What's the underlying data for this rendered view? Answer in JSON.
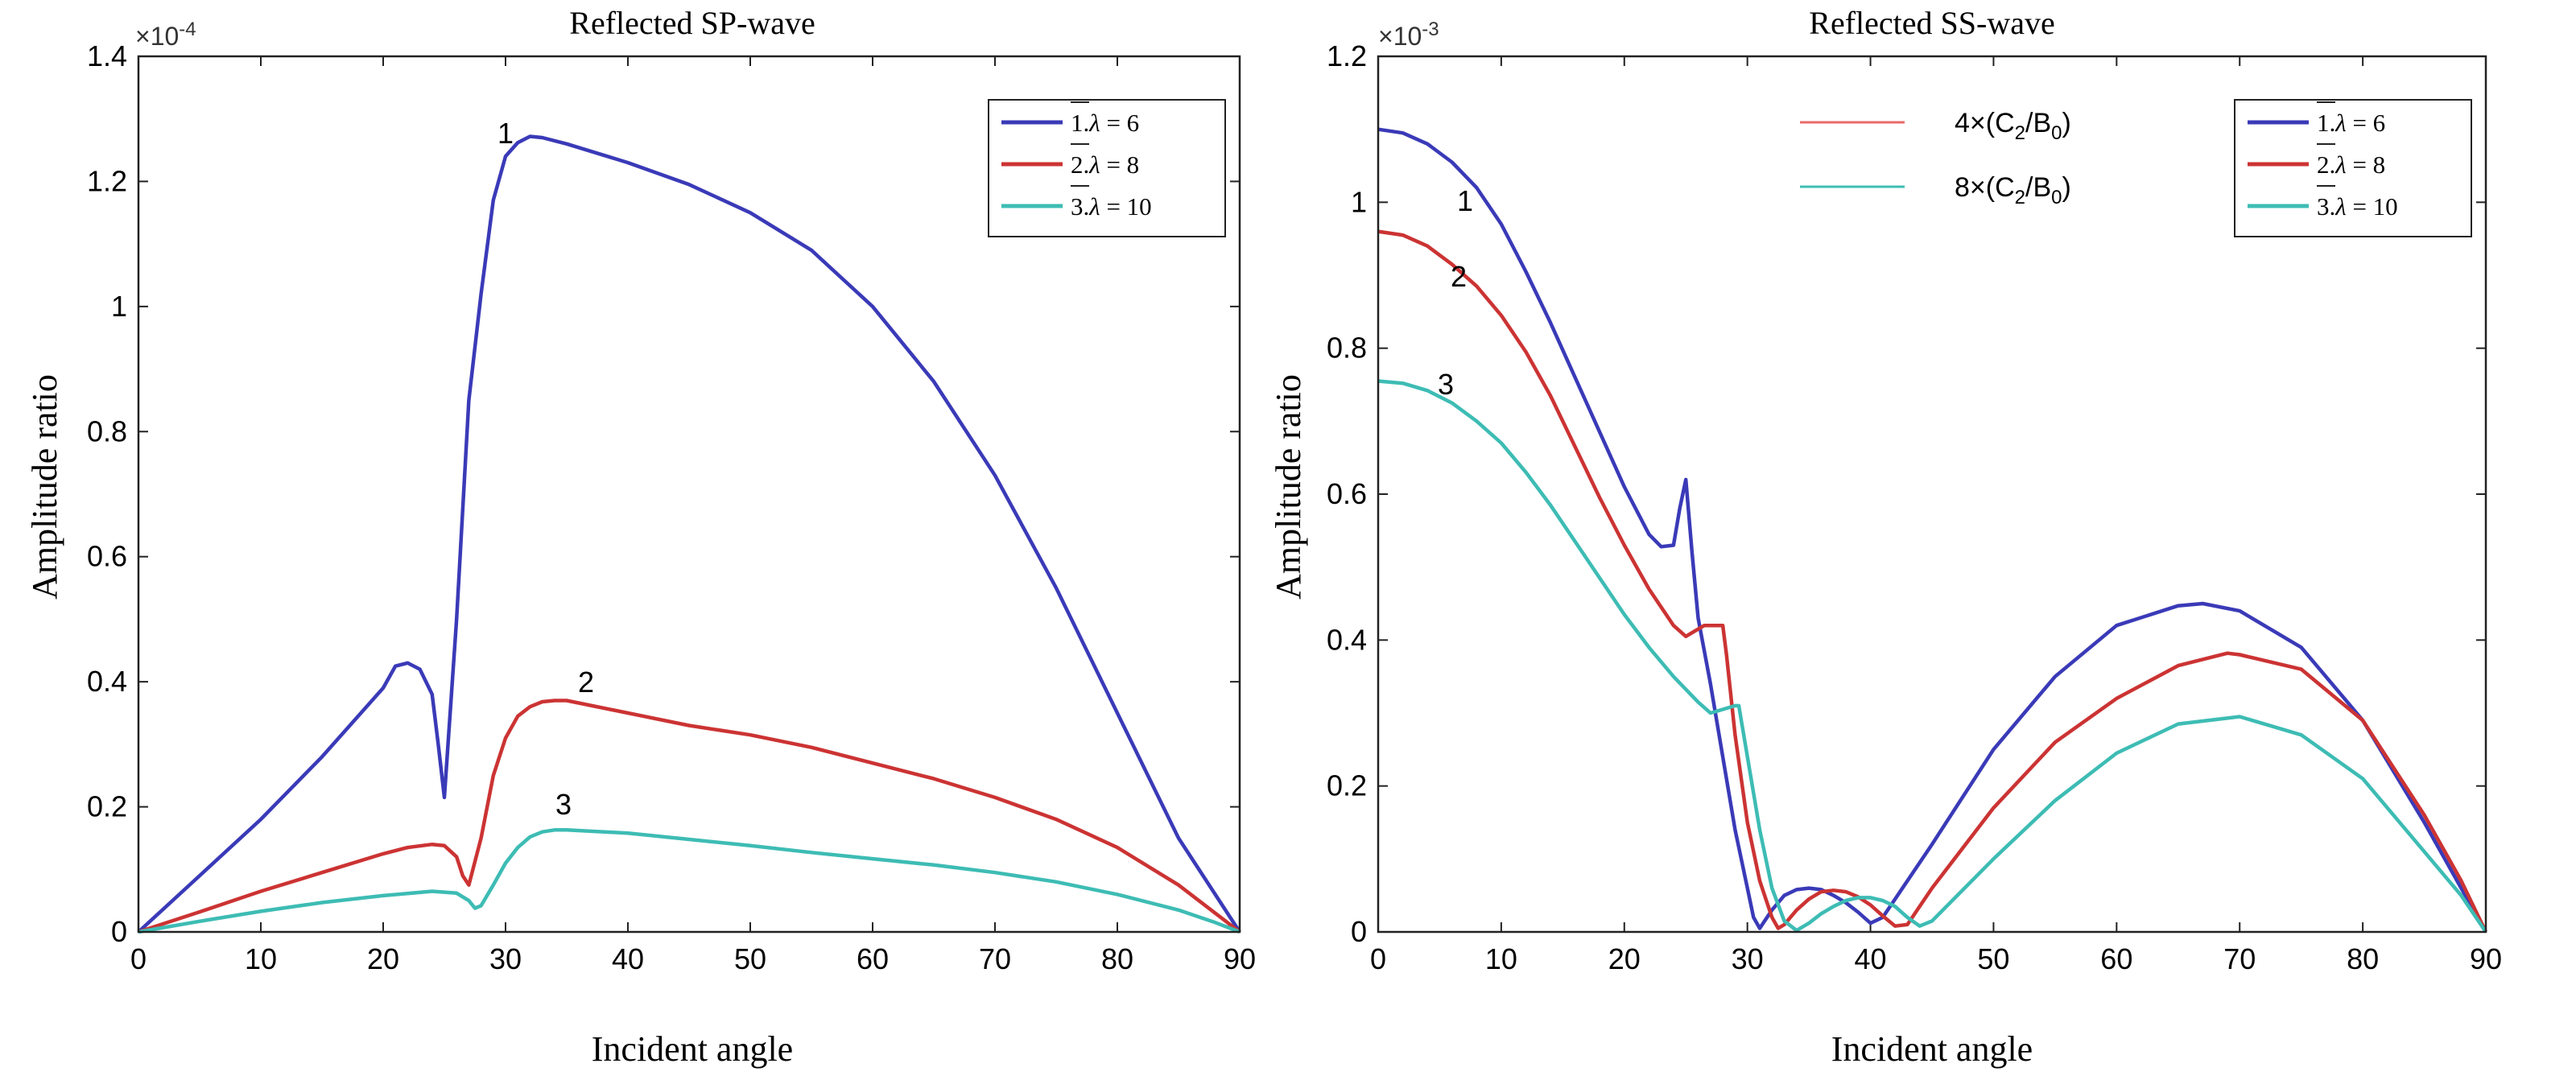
{
  "chart_data": [
    {
      "type": "line",
      "title": "Reflected SP-wave",
      "xlabel": "Incident angle",
      "ylabel": "Amplitude ratio",
      "exponent_label": "×10",
      "exponent_power": "-4",
      "xlim": [
        0,
        90
      ],
      "ylim": [
        0,
        1.4
      ],
      "xticks": [
        "0",
        "10",
        "20",
        "30",
        "40",
        "50",
        "60",
        "70",
        "80",
        "90"
      ],
      "yticks": [
        "0",
        "0.2",
        "0.4",
        "0.6",
        "0.8",
        "1",
        "1.2",
        "1.4"
      ],
      "legend_position": "top-right",
      "series": [
        {
          "name": "1.λ = 6",
          "legend_prefix": "1.",
          "legend_value": "6",
          "color": "#3a3ab8",
          "curve_label": "1",
          "x": [
            0,
            5,
            10,
            15,
            20,
            21,
            22,
            23,
            24,
            24.5,
            25,
            26,
            27,
            28,
            29,
            30,
            31,
            32,
            33,
            35,
            40,
            45,
            50,
            55,
            60,
            65,
            70,
            75,
            80,
            85,
            88,
            90
          ],
          "y": [
            0,
            0.09,
            0.18,
            0.28,
            0.39,
            0.425,
            0.43,
            0.42,
            0.38,
            0.3,
            0.215,
            0.5,
            0.85,
            1.02,
            1.17,
            1.24,
            1.262,
            1.272,
            1.27,
            1.26,
            1.23,
            1.195,
            1.15,
            1.09,
            1.0,
            0.88,
            0.73,
            0.55,
            0.35,
            0.15,
            0.06,
            0
          ]
        },
        {
          "name": "2.λ = 8",
          "legend_prefix": "2.",
          "legend_value": "8",
          "color": "#cc3333",
          "curve_label": "2",
          "x": [
            0,
            5,
            10,
            15,
            20,
            22,
            24,
            25,
            26,
            26.5,
            27,
            28,
            29,
            30,
            31,
            32,
            33,
            34,
            35,
            40,
            45,
            50,
            55,
            60,
            65,
            70,
            75,
            80,
            85,
            88,
            90
          ],
          "y": [
            0,
            0.032,
            0.065,
            0.095,
            0.125,
            0.135,
            0.14,
            0.138,
            0.12,
            0.09,
            0.075,
            0.15,
            0.25,
            0.31,
            0.345,
            0.36,
            0.368,
            0.37,
            0.37,
            0.35,
            0.33,
            0.315,
            0.295,
            0.27,
            0.245,
            0.215,
            0.18,
            0.135,
            0.075,
            0.03,
            0
          ]
        },
        {
          "name": "3.λ = 10",
          "legend_prefix": "3.",
          "legend_value": "10",
          "color": "#3dbcb4",
          "curve_label": "3",
          "x": [
            0,
            5,
            10,
            15,
            20,
            24,
            26,
            27,
            27.5,
            28,
            29,
            30,
            31,
            32,
            33,
            34,
            35,
            40,
            45,
            50,
            55,
            60,
            65,
            70,
            75,
            80,
            85,
            88,
            90
          ],
          "y": [
            0,
            0.017,
            0.033,
            0.047,
            0.058,
            0.065,
            0.062,
            0.05,
            0.038,
            0.042,
            0.075,
            0.11,
            0.135,
            0.152,
            0.16,
            0.163,
            0.163,
            0.158,
            0.148,
            0.138,
            0.127,
            0.117,
            0.107,
            0.095,
            0.08,
            0.06,
            0.035,
            0.015,
            0
          ]
        }
      ]
    },
    {
      "type": "line",
      "title": "Reflected SS-wave",
      "xlabel": "Incident angle",
      "ylabel": "Amplitude ratio",
      "exponent_label": "×10",
      "exponent_power": "-3",
      "xlim": [
        0,
        90
      ],
      "ylim": [
        0,
        1.2
      ],
      "xticks": [
        "0",
        "10",
        "20",
        "30",
        "40",
        "50",
        "60",
        "70",
        "80",
        "90"
      ],
      "yticks": [
        "0",
        "0.2",
        "0.4",
        "0.6",
        "0.8",
        "1",
        "1.2"
      ],
      "legend_position": "top-right",
      "annotations": [
        {
          "prefix": "4×(C",
          "sub1": "2",
          "mid": "/B",
          "sub2": "0",
          "suffix": ")",
          "color": "#e86a6a"
        },
        {
          "prefix": "8×(C",
          "sub1": "2",
          "mid": "/B",
          "sub2": "0",
          "suffix": ")",
          "color": "#3dbcb4"
        }
      ],
      "series": [
        {
          "name": "1.λ = 6",
          "legend_prefix": "1.",
          "legend_value": "6",
          "color": "#3a3ab8",
          "curve_label": "1",
          "x": [
            0,
            2,
            4,
            6,
            8,
            10,
            12,
            14,
            16,
            18,
            20,
            22,
            23,
            24,
            24.5,
            25,
            25.5,
            26,
            27,
            28,
            29,
            30,
            30.5,
            31,
            32,
            33,
            34,
            35,
            36,
            37,
            38,
            39,
            40,
            41,
            42,
            45,
            50,
            55,
            60,
            65,
            67,
            70,
            75,
            80,
            85,
            88,
            90
          ],
          "y": [
            1.1,
            1.095,
            1.08,
            1.055,
            1.02,
            0.97,
            0.905,
            0.835,
            0.76,
            0.685,
            0.61,
            0.545,
            0.528,
            0.53,
            0.58,
            0.62,
            0.52,
            0.43,
            0.34,
            0.24,
            0.14,
            0.06,
            0.02,
            0.005,
            0.03,
            0.05,
            0.058,
            0.06,
            0.058,
            0.05,
            0.04,
            0.027,
            0.012,
            0.02,
            0.045,
            0.12,
            0.25,
            0.35,
            0.42,
            0.447,
            0.45,
            0.44,
            0.39,
            0.29,
            0.15,
            0.06,
            0
          ]
        },
        {
          "name": "2.λ = 8",
          "legend_prefix": "2.",
          "legend_value": "8",
          "color": "#cc3333",
          "curve_label": "2",
          "x": [
            0,
            2,
            4,
            6,
            8,
            10,
            12,
            14,
            16,
            18,
            20,
            22,
            24,
            25,
            26,
            26.5,
            27,
            28,
            28.3,
            29,
            30,
            31,
            32,
            32.5,
            33,
            34,
            35,
            36,
            37,
            38,
            39,
            40,
            41,
            42,
            43,
            45,
            50,
            55,
            60,
            65,
            69,
            70,
            75,
            80,
            85,
            88,
            90
          ],
          "y": [
            0.96,
            0.955,
            0.94,
            0.915,
            0.885,
            0.845,
            0.795,
            0.735,
            0.665,
            0.595,
            0.53,
            0.47,
            0.42,
            0.405,
            0.415,
            0.42,
            0.42,
            0.42,
            0.38,
            0.27,
            0.15,
            0.07,
            0.02,
            0.005,
            0.01,
            0.03,
            0.045,
            0.055,
            0.057,
            0.055,
            0.048,
            0.037,
            0.022,
            0.008,
            0.01,
            0.06,
            0.17,
            0.26,
            0.32,
            0.365,
            0.382,
            0.38,
            0.36,
            0.29,
            0.16,
            0.07,
            0
          ]
        },
        {
          "name": "3.λ = 10",
          "legend_prefix": "3.",
          "legend_value": "10",
          "color": "#3dbcb4",
          "curve_label": "3",
          "x": [
            0,
            2,
            4,
            6,
            8,
            10,
            12,
            14,
            16,
            18,
            20,
            22,
            24,
            26,
            27,
            28,
            29,
            29.3,
            30,
            31,
            32,
            33,
            34,
            35,
            36,
            37,
            38,
            39,
            40,
            41,
            42,
            43,
            44,
            45,
            50,
            55,
            60,
            65,
            70,
            75,
            80,
            85,
            88,
            90
          ],
          "y": [
            0.755,
            0.752,
            0.742,
            0.725,
            0.7,
            0.67,
            0.63,
            0.585,
            0.535,
            0.485,
            0.435,
            0.39,
            0.35,
            0.315,
            0.3,
            0.305,
            0.31,
            0.31,
            0.24,
            0.14,
            0.06,
            0.015,
            0.002,
            0.012,
            0.025,
            0.035,
            0.043,
            0.047,
            0.047,
            0.043,
            0.035,
            0.02,
            0.008,
            0.015,
            0.1,
            0.18,
            0.245,
            0.285,
            0.295,
            0.27,
            0.21,
            0.11,
            0.05,
            0
          ]
        }
      ]
    }
  ]
}
